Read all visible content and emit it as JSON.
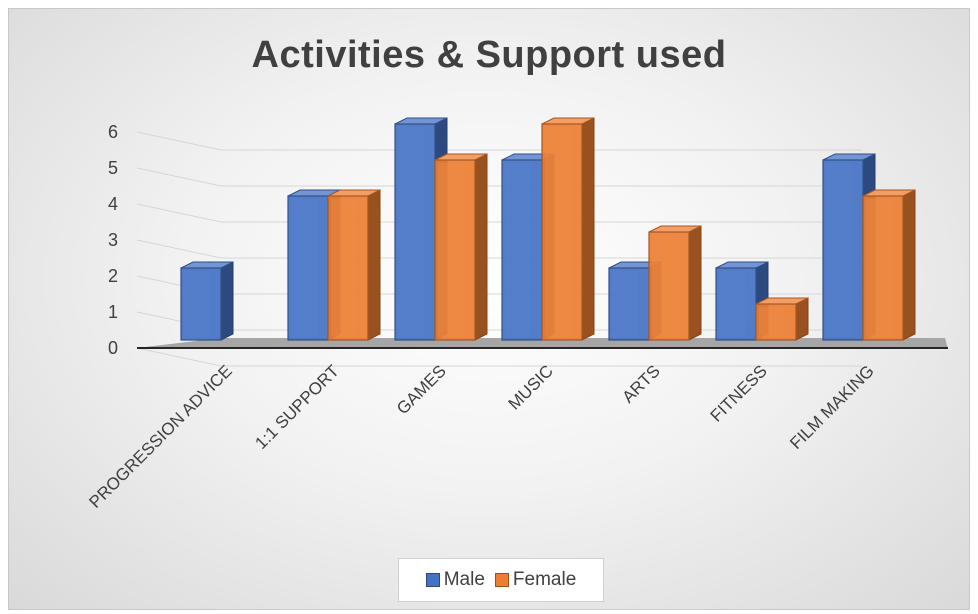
{
  "chart_data": {
    "type": "bar",
    "title": "Activities & Support used",
    "categories": [
      "PROGRESSION ADVICE",
      "1:1 SUPPORT",
      "GAMES",
      "MUSIC",
      "ARTS",
      "FITNESS",
      "FILM MAKING"
    ],
    "series": [
      {
        "name": "Male",
        "values": [
          2,
          4,
          6,
          5,
          2,
          2,
          5
        ],
        "color": "#4472C4"
      },
      {
        "name": "Female",
        "values": [
          0,
          4,
          5,
          6,
          3,
          1,
          4
        ],
        "color": "#ED7D31"
      }
    ],
    "ylim": [
      0,
      6
    ],
    "yticks": [
      0,
      1,
      2,
      3,
      4,
      5,
      6
    ],
    "grid": true,
    "legend_position": "bottom",
    "style": "3d-clustered-column"
  }
}
